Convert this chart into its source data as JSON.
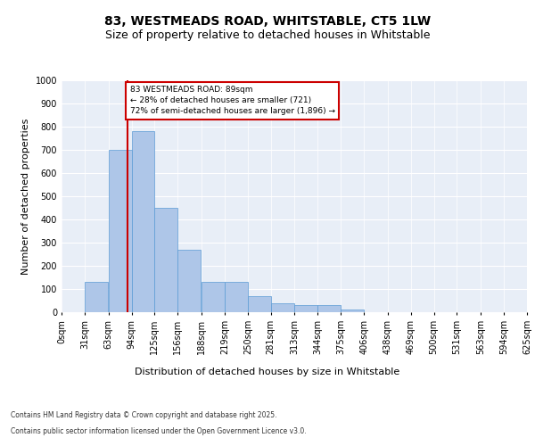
{
  "title": "83, WESTMEADS ROAD, WHITSTABLE, CT5 1LW",
  "subtitle": "Size of property relative to detached houses in Whitstable",
  "xlabel": "Distribution of detached houses by size in Whitstable",
  "ylabel": "Number of detached properties",
  "annotation_title": "83 WESTMEADS ROAD: 89sqm",
  "annotation_line1": "← 28% of detached houses are smaller (721)",
  "annotation_line2": "72% of semi-detached houses are larger (1,896) →",
  "footer1": "Contains HM Land Registry data © Crown copyright and database right 2025.",
  "footer2": "Contains public sector information licensed under the Open Government Licence v3.0.",
  "property_value": 89,
  "bin_edges": [
    0,
    31,
    63,
    94,
    125,
    156,
    188,
    219,
    250,
    281,
    313,
    344,
    375,
    406,
    438,
    469,
    500,
    531,
    563,
    594,
    625
  ],
  "bar_heights": [
    0,
    130,
    700,
    780,
    450,
    270,
    130,
    130,
    70,
    40,
    30,
    30,
    10,
    0,
    0,
    0,
    0,
    0,
    0,
    0
  ],
  "bar_color": "#aec6e8",
  "bar_edge_color": "#5b9bd5",
  "vline_color": "#cc0000",
  "vline_value": 89,
  "annotation_box_color": "#cc0000",
  "background_color": "#e8eef7",
  "ylim": [
    0,
    1000
  ],
  "yticks": [
    0,
    100,
    200,
    300,
    400,
    500,
    600,
    700,
    800,
    900,
    1000
  ],
  "grid_color": "#ffffff",
  "title_fontsize": 10,
  "subtitle_fontsize": 9,
  "axis_label_fontsize": 8,
  "tick_fontsize": 7,
  "annotation_fontsize": 6.5,
  "footer_fontsize": 5.5
}
